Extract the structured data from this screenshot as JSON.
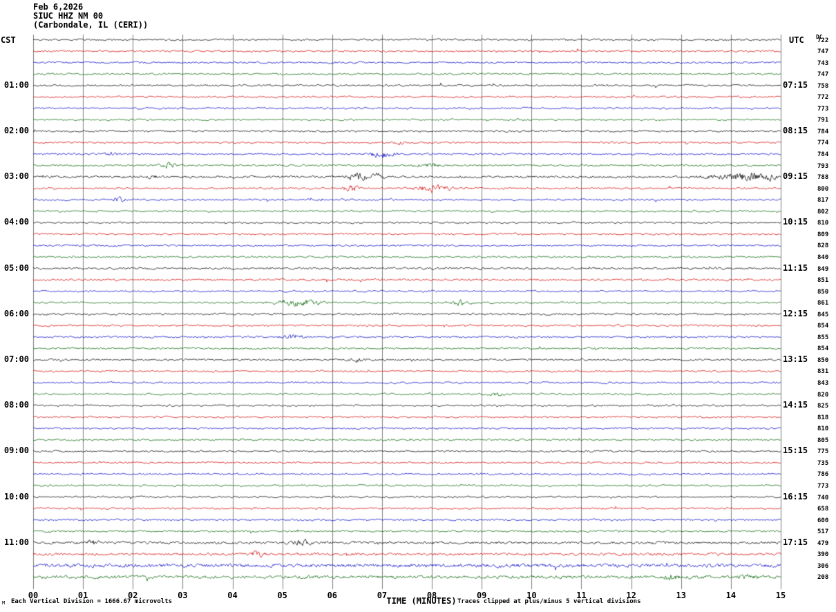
{
  "header": {
    "date": "Feb 6,2026",
    "station": "SIUC HHZ NM 00",
    "location": "(Carbondale, IL (CERI))"
  },
  "axes": {
    "left_tz": "CST",
    "right_tz": "UTC",
    "dc_header": "DC",
    "xlabel": "TIME (MINUTES)",
    "minute_labels": [
      "00",
      "01",
      "02",
      "03",
      "04",
      "05",
      "06",
      "07",
      "08",
      "09",
      "10",
      "11",
      "12",
      "13",
      "14",
      "15"
    ]
  },
  "footer": {
    "scale_note": "Each Vertical Division = 1666.67 microvolts",
    "clip_note": "Traces clipped at plus/minus 5 vertical divisions",
    "corner_mark": "M"
  },
  "chart_data": {
    "type": "line",
    "subtype": "helicorder-seismogram",
    "title": "SIUC HHZ NM 00 (Carbondale, IL (CERI)) Feb 6,2026",
    "xlabel": "TIME (MINUTES)",
    "x_range_minutes": [
      0,
      15
    ],
    "minutes_per_row": 15,
    "rows": 48,
    "microvolts_per_division": 1666.67,
    "clip_divisions": 5,
    "grid": true,
    "trace_colors_cycle": [
      "#000000",
      "#d40000",
      "#0000c8",
      "#006400"
    ],
    "left_time_labels": [
      {
        "row": 4,
        "label": "01:00"
      },
      {
        "row": 8,
        "label": "02:00"
      },
      {
        "row": 12,
        "label": "03:00"
      },
      {
        "row": 16,
        "label": "04:00"
      },
      {
        "row": 20,
        "label": "05:00"
      },
      {
        "row": 24,
        "label": "06:00"
      },
      {
        "row": 28,
        "label": "07:00"
      },
      {
        "row": 32,
        "label": "08:00"
      },
      {
        "row": 36,
        "label": "09:00"
      },
      {
        "row": 40,
        "label": "10:00"
      },
      {
        "row": 44,
        "label": "11:00"
      }
    ],
    "right_time_labels": [
      {
        "row": 4,
        "label": "07:15"
      },
      {
        "row": 8,
        "label": "08:15"
      },
      {
        "row": 12,
        "label": "09:15"
      },
      {
        "row": 16,
        "label": "10:15"
      },
      {
        "row": 20,
        "label": "11:15"
      },
      {
        "row": 24,
        "label": "12:15"
      },
      {
        "row": 28,
        "label": "13:15"
      },
      {
        "row": 32,
        "label": "14:15"
      },
      {
        "row": 36,
        "label": "15:15"
      },
      {
        "row": 40,
        "label": "16:15"
      },
      {
        "row": 44,
        "label": "17:15"
      }
    ],
    "dc_values": [
      722,
      747,
      743,
      747,
      758,
      772,
      773,
      791,
      784,
      774,
      784,
      793,
      788,
      800,
      817,
      802,
      810,
      809,
      828,
      840,
      849,
      851,
      850,
      861,
      845,
      854,
      855,
      854,
      850,
      831,
      843,
      820,
      825,
      818,
      810,
      805,
      775,
      735,
      786,
      773,
      740,
      658,
      600,
      517,
      479,
      390,
      306,
      208
    ],
    "amp_overrides": {
      "12": 1.3,
      "20": 1.15,
      "21": 1.15,
      "24": 1.1,
      "44": 1.4,
      "45": 1.4,
      "46": 1.9,
      "47": 1.7
    },
    "events": [
      {
        "row": 9,
        "minute": 7.4,
        "amp": 2.2,
        "sigma": 0.08
      },
      {
        "row": 10,
        "minute": 1.6,
        "amp": 1.5,
        "sigma": 0.1
      },
      {
        "row": 10,
        "minute": 7.0,
        "amp": 3.5,
        "sigma": 0.18
      },
      {
        "row": 11,
        "minute": 2.7,
        "amp": 2.6,
        "sigma": 0.12
      },
      {
        "row": 11,
        "minute": 7.9,
        "amp": 2.6,
        "sigma": 0.15
      },
      {
        "row": 12,
        "minute": 2.4,
        "amp": 2.0,
        "sigma": 0.05
      },
      {
        "row": 12,
        "minute": 6.5,
        "amp": 4.5,
        "sigma": 0.12
      },
      {
        "row": 12,
        "minute": 6.9,
        "amp": 3.0,
        "sigma": 0.08
      },
      {
        "row": 12,
        "minute": 14.4,
        "amp": 4.0,
        "sigma": 0.5
      },
      {
        "row": 13,
        "minute": 6.4,
        "amp": 3.2,
        "sigma": 0.1
      },
      {
        "row": 13,
        "minute": 8.0,
        "amp": 3.5,
        "sigma": 0.25
      },
      {
        "row": 14,
        "minute": 1.7,
        "amp": 2.2,
        "sigma": 0.1
      },
      {
        "row": 23,
        "minute": 5.3,
        "amp": 3.2,
        "sigma": 0.3
      },
      {
        "row": 23,
        "minute": 8.6,
        "amp": 3.0,
        "sigma": 0.12
      },
      {
        "row": 26,
        "minute": 5.2,
        "amp": 2.2,
        "sigma": 0.15
      },
      {
        "row": 28,
        "minute": 6.5,
        "amp": 1.8,
        "sigma": 0.1
      },
      {
        "row": 31,
        "minute": 9.3,
        "amp": 2.0,
        "sigma": 0.07
      },
      {
        "row": 44,
        "minute": 1.2,
        "amp": 2.5,
        "sigma": 0.1
      },
      {
        "row": 44,
        "minute": 5.4,
        "amp": 2.8,
        "sigma": 0.12
      },
      {
        "row": 45,
        "minute": 4.5,
        "amp": 2.5,
        "sigma": 0.1
      },
      {
        "row": 47,
        "minute": 12.8,
        "amp": 2.2,
        "sigma": 0.15
      },
      {
        "row": 47,
        "minute": 14.3,
        "amp": 2.0,
        "sigma": 0.12
      }
    ]
  }
}
